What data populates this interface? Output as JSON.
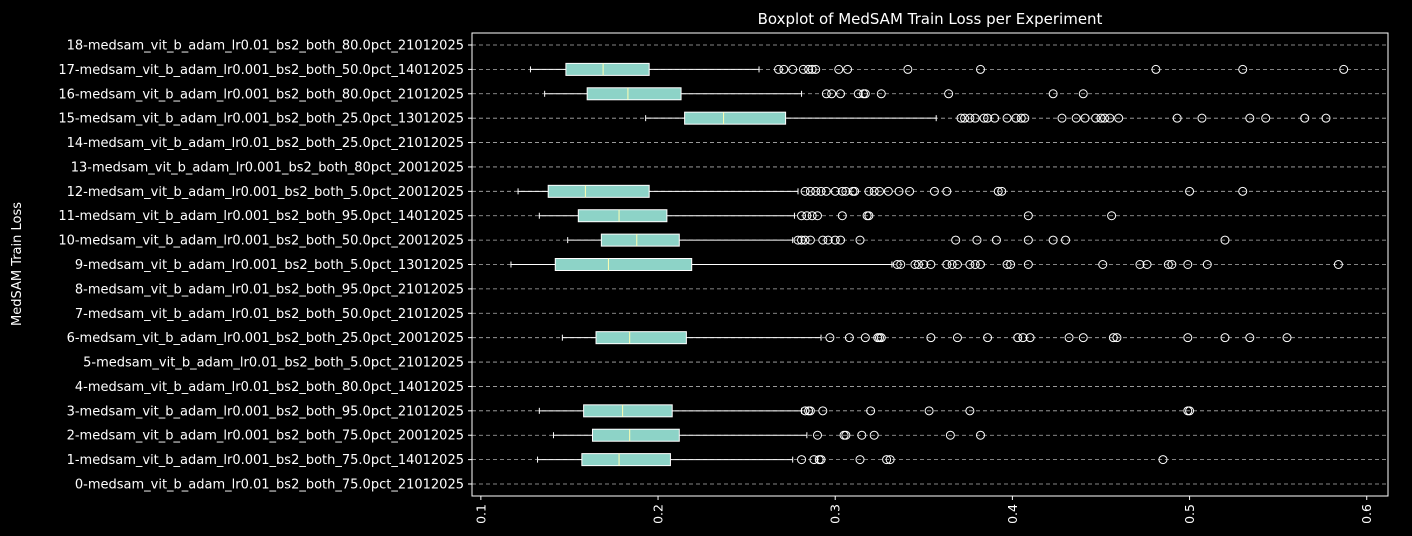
{
  "chart_data": {
    "type": "boxplot",
    "orientation": "horizontal",
    "title": "Boxplot of MedSAM Train Loss per Experiment",
    "ylabel": "MedSAM Train Loss",
    "xlabel": "",
    "xlim": [
      0.095,
      0.612
    ],
    "xticks": [
      0.1,
      0.2,
      0.3,
      0.4,
      0.5,
      0.6
    ],
    "xtick_labels": [
      "0.1",
      "0.2",
      "0.3",
      "0.4",
      "0.5",
      "0.6"
    ],
    "grid": "horizontal dashed",
    "colors": {
      "background": "#000000",
      "box": "#8dd3c7",
      "median": "#ffffb3",
      "line": "#ffffff",
      "grid": "#b0b0b0"
    },
    "categories": [
      "0-medsam_vit_b_adam_lr0.01_bs2_both_75.0pct_21012025",
      "1-medsam_vit_b_adam_lr0.001_bs2_both_75.0pct_14012025",
      "2-medsam_vit_b_adam_lr0.001_bs2_both_75.0pct_20012025",
      "3-medsam_vit_b_adam_lr0.001_bs2_both_95.0pct_21012025",
      "4-medsam_vit_b_adam_lr0.01_bs2_both_80.0pct_14012025",
      "5-medsam_vit_b_adam_lr0.01_bs2_both_5.0pct_21012025",
      "6-medsam_vit_b_adam_lr0.001_bs2_both_25.0pct_20012025",
      "7-medsam_vit_b_adam_lr0.01_bs2_both_50.0pct_21012025",
      "8-medsam_vit_b_adam_lr0.01_bs2_both_95.0pct_21012025",
      "9-medsam_vit_b_adam_lr0.001_bs2_both_5.0pct_13012025",
      "10-medsam_vit_b_adam_lr0.001_bs2_both_50.0pct_20012025",
      "11-medsam_vit_b_adam_lr0.001_bs2_both_95.0pct_14012025",
      "12-medsam_vit_b_adam_lr0.001_bs2_both_5.0pct_20012025",
      "13-medsam_vit_b_adam_lr0.001_bs2_both_80pct_20012025",
      "14-medsam_vit_b_adam_lr0.01_bs2_both_25.0pct_21012025",
      "15-medsam_vit_b_adam_lr0.001_bs2_both_25.0pct_13012025",
      "16-medsam_vit_b_adam_lr0.001_bs2_both_80.0pct_21012025",
      "17-medsam_vit_b_adam_lr0.001_bs2_both_50.0pct_14012025",
      "18-medsam_vit_b_adam_lr0.01_bs2_both_80.0pct_21012025"
    ],
    "boxes": [
      null,
      {
        "whislo": 0.132,
        "q1": 0.157,
        "med": 0.178,
        "q3": 0.207,
        "whishi": 0.276,
        "fliers": [
          0.281,
          0.288,
          0.291,
          0.292,
          0.314,
          0.329,
          0.331,
          0.485
        ]
      },
      {
        "whislo": 0.141,
        "q1": 0.163,
        "med": 0.184,
        "q3": 0.212,
        "whishi": 0.284,
        "fliers": [
          0.29,
          0.305,
          0.306,
          0.315,
          0.322,
          0.365,
          0.382
        ]
      },
      {
        "whislo": 0.133,
        "q1": 0.158,
        "med": 0.18,
        "q3": 0.208,
        "whishi": 0.281,
        "fliers": [
          0.283,
          0.285,
          0.286,
          0.293,
          0.32,
          0.353,
          0.376,
          0.499,
          0.5
        ]
      },
      null,
      null,
      {
        "whislo": 0.146,
        "q1": 0.165,
        "med": 0.184,
        "q3": 0.216,
        "whishi": 0.292,
        "fliers": [
          0.297,
          0.308,
          0.317,
          0.324,
          0.325,
          0.326,
          0.354,
          0.369,
          0.386,
          0.403,
          0.406,
          0.41,
          0.432,
          0.44,
          0.457,
          0.459,
          0.499,
          0.52,
          0.534,
          0.555
        ]
      },
      null,
      null,
      {
        "whislo": 0.117,
        "q1": 0.142,
        "med": 0.172,
        "q3": 0.219,
        "whishi": 0.332,
        "fliers": [
          0.335,
          0.337,
          0.345,
          0.347,
          0.35,
          0.354,
          0.363,
          0.366,
          0.369,
          0.376,
          0.379,
          0.382,
          0.397,
          0.399,
          0.409,
          0.451,
          0.472,
          0.476,
          0.488,
          0.49,
          0.499,
          0.51,
          0.584
        ]
      },
      {
        "whislo": 0.149,
        "q1": 0.168,
        "med": 0.188,
        "q3": 0.212,
        "whishi": 0.276,
        "fliers": [
          0.279,
          0.281,
          0.283,
          0.286,
          0.293,
          0.296,
          0.3,
          0.303,
          0.314,
          0.368,
          0.38,
          0.391,
          0.409,
          0.423,
          0.43,
          0.52
        ]
      },
      {
        "whislo": 0.133,
        "q1": 0.155,
        "med": 0.178,
        "q3": 0.205,
        "whishi": 0.277,
        "fliers": [
          0.281,
          0.284,
          0.287,
          0.29,
          0.304,
          0.318,
          0.319,
          0.409,
          0.456
        ]
      },
      {
        "whislo": 0.121,
        "q1": 0.138,
        "med": 0.159,
        "q3": 0.195,
        "whishi": 0.279,
        "fliers": [
          0.283,
          0.286,
          0.289,
          0.292,
          0.295,
          0.3,
          0.304,
          0.306,
          0.31,
          0.311,
          0.319,
          0.322,
          0.325,
          0.33,
          0.336,
          0.342,
          0.356,
          0.363,
          0.392,
          0.394,
          0.5,
          0.53
        ]
      },
      null,
      null,
      {
        "whislo": 0.193,
        "q1": 0.215,
        "med": 0.237,
        "q3": 0.272,
        "whishi": 0.357,
        "fliers": [
          0.371,
          0.373,
          0.376,
          0.379,
          0.384,
          0.386,
          0.39,
          0.397,
          0.402,
          0.405,
          0.407,
          0.428,
          0.436,
          0.441,
          0.447,
          0.45,
          0.452,
          0.455,
          0.46,
          0.493,
          0.507,
          0.534,
          0.543,
          0.565,
          0.577
        ]
      },
      {
        "whislo": 0.136,
        "q1": 0.16,
        "med": 0.183,
        "q3": 0.213,
        "whishi": 0.281,
        "fliers": [
          0.295,
          0.298,
          0.303,
          0.313,
          0.316,
          0.317,
          0.326,
          0.364,
          0.423,
          0.44
        ]
      },
      {
        "whislo": 0.128,
        "q1": 0.148,
        "med": 0.169,
        "q3": 0.195,
        "whishi": 0.257,
        "fliers": [
          0.268,
          0.271,
          0.276,
          0.282,
          0.285,
          0.287,
          0.289,
          0.302,
          0.307,
          0.341,
          0.382,
          0.481,
          0.53,
          0.587
        ]
      },
      null
    ]
  }
}
